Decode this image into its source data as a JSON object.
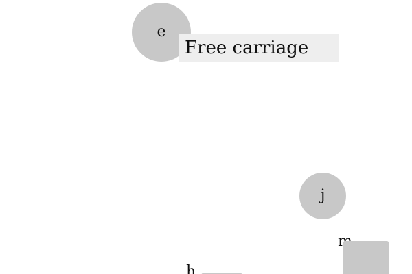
{
  "nodes": {
    "e": {
      "label": "e"
    },
    "j": {
      "label": "j"
    },
    "m": {
      "label": "m"
    },
    "h": {
      "label": "h"
    }
  },
  "label_box": {
    "text": "Free carriage"
  },
  "colors": {
    "node_fill": "#c8c8c8",
    "label_fill": "#eeeeee",
    "text": "#111111",
    "background": "#ffffff"
  }
}
